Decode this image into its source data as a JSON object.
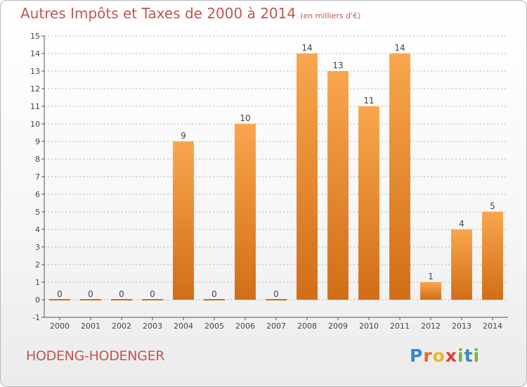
{
  "title": "Autres Impôts et Taxes de 2000 à 2014",
  "subtitle": "(en milliers d'€)",
  "commune": "HODENG-HODENGER",
  "brand": "Proxiti",
  "colors": {
    "bar_light": "#f9a64e",
    "bar_dark": "#d16e17",
    "title": "#c1564f",
    "grid": "#9a9a9a"
  },
  "chart_data": {
    "type": "bar",
    "title": "Autres Impôts et Taxes de 2000 à 2014",
    "subtitle": "(en milliers d'€)",
    "categories": [
      "2000",
      "2001",
      "2002",
      "2003",
      "2004",
      "2005",
      "2006",
      "2007",
      "2008",
      "2009",
      "2010",
      "2011",
      "2012",
      "2013",
      "2014"
    ],
    "values": [
      0,
      0,
      0,
      0,
      9,
      0,
      10,
      0,
      14,
      13,
      11,
      14,
      1,
      4,
      5
    ],
    "ylim": [
      -1,
      15
    ],
    "yticks": [
      -1,
      0,
      1,
      2,
      3,
      4,
      5,
      6,
      7,
      8,
      9,
      10,
      11,
      12,
      13,
      14,
      15
    ],
    "grid": "horizontal dashed",
    "xlabel": "",
    "ylabel": ""
  }
}
